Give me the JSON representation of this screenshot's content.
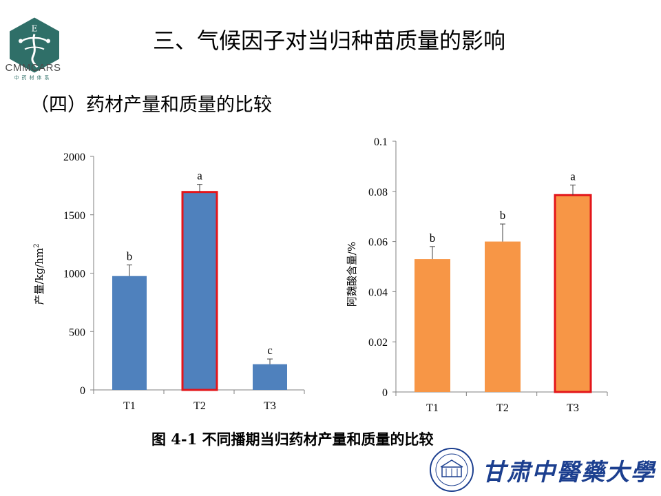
{
  "header": {
    "logo_name": "CMMCARS",
    "logo_sub": "中药材体系",
    "logo_icon": "cmmcars-hexagon-logo",
    "title": "三、气候因子对当归种苗质量的影响",
    "section": "（四）药材产量和质量的比较"
  },
  "caption": "图 4-1 不同播期当归药材产量和质量的比较",
  "footer": {
    "university_name": "甘肃中醫藥大學",
    "emblem_icon": "university-emblem-icon"
  },
  "colors": {
    "blue_bar": "#4f81bd",
    "orange_bar": "#f79646",
    "highlight": "#e3151a",
    "logo_green": "#2f6f68"
  },
  "chart_data": [
    {
      "type": "bar",
      "categories": [
        "T1",
        "T2",
        "T3"
      ],
      "values": [
        975,
        1695,
        220
      ],
      "errors": [
        95,
        65,
        45
      ],
      "significance": [
        "b",
        "a",
        "c"
      ],
      "highlight_index": 1,
      "ylabel": "产量/kg/hm",
      "ylabel_sup": "2",
      "ylim": [
        0,
        2000
      ],
      "yticks": [
        0,
        500,
        1000,
        1500,
        2000
      ],
      "ytick_labels": [
        "0",
        "500",
        "1000",
        "1500",
        "2000"
      ],
      "grid": false
    },
    {
      "type": "bar",
      "categories": [
        "T1",
        "T2",
        "T3"
      ],
      "values": [
        0.053,
        0.06,
        0.0785
      ],
      "errors": [
        0.005,
        0.007,
        0.004
      ],
      "significance": [
        "b",
        "b",
        "a"
      ],
      "highlight_index": 2,
      "ylabel": "阿魏酸含量/%",
      "ylim": [
        0,
        0.1
      ],
      "yticks": [
        0,
        0.02,
        0.04,
        0.06,
        0.08,
        0.1
      ],
      "ytick_labels": [
        "0",
        "0.02",
        "0.04",
        "0.06",
        "0.08",
        "0.1"
      ],
      "grid": false
    }
  ]
}
